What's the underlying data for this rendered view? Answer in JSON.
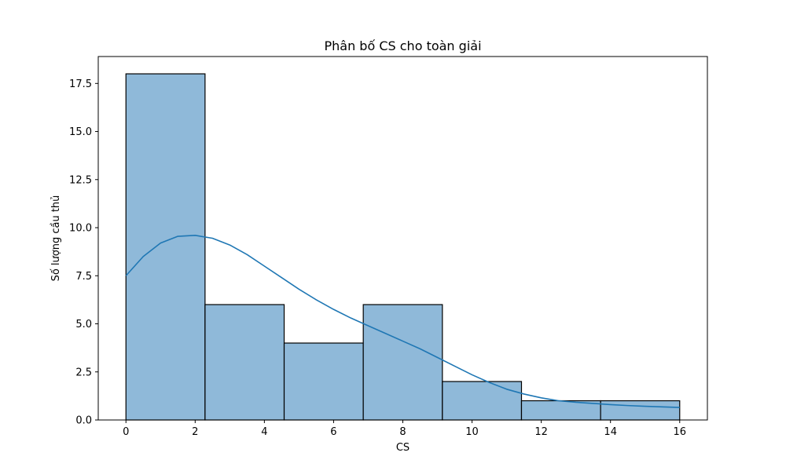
{
  "chart_data": {
    "type": "bar",
    "title": "Phân bố CS cho toàn giải",
    "xlabel": "CS",
    "ylabel": "Số lượng cầu thủ",
    "xlim": [
      -0.8,
      16.8
    ],
    "ylim": [
      0,
      18.9
    ],
    "xticks": [
      0,
      2,
      4,
      6,
      8,
      10,
      12,
      14,
      16
    ],
    "xtick_labels": [
      "0",
      "2",
      "4",
      "6",
      "8",
      "10",
      "12",
      "14",
      "16"
    ],
    "yticks": [
      0,
      2.5,
      5,
      7.5,
      10,
      12.5,
      15,
      17.5
    ],
    "ytick_labels": [
      "0.0",
      "2.5",
      "5.0",
      "7.5",
      "10.0",
      "12.5",
      "15.0",
      "17.5"
    ],
    "bin_edges": [
      0,
      2.2857,
      4.5714,
      6.8571,
      9.1429,
      11.4286,
      13.7143,
      16
    ],
    "counts": [
      18,
      6,
      4,
      6,
      2,
      1,
      1
    ],
    "kde": {
      "x": [
        0,
        0.5,
        1,
        1.5,
        2,
        2.5,
        3,
        3.5,
        4,
        4.5,
        5,
        5.5,
        6,
        6.5,
        7,
        7.5,
        8,
        8.5,
        9,
        9.5,
        10,
        10.5,
        11,
        11.5,
        12,
        12.5,
        13,
        13.5,
        14,
        14.5,
        15,
        15.5,
        16
      ],
      "y": [
        7.5,
        8.5,
        9.2,
        9.55,
        9.6,
        9.45,
        9.1,
        8.6,
        8.0,
        7.4,
        6.8,
        6.25,
        5.75,
        5.3,
        4.9,
        4.5,
        4.1,
        3.7,
        3.25,
        2.8,
        2.35,
        1.95,
        1.6,
        1.35,
        1.15,
        1.0,
        0.92,
        0.86,
        0.8,
        0.75,
        0.71,
        0.68,
        0.65
      ]
    },
    "grid": false,
    "colors": {
      "bar_fill": "#8fb9d9",
      "bar_edge": "#000000",
      "kde_line": "#1f77b4"
    }
  }
}
